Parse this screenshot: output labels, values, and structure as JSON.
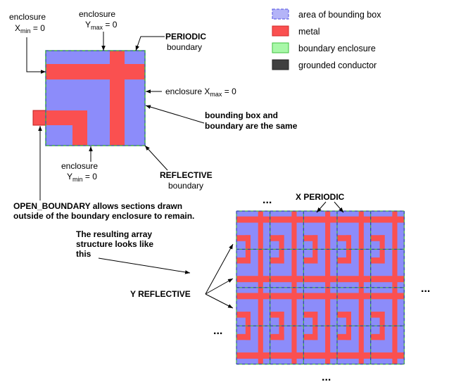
{
  "legend": [
    {
      "label": "area of bounding box",
      "swatch": "bounding-box"
    },
    {
      "label": "metal",
      "swatch": "metal"
    },
    {
      "label": "boundary enclosure",
      "swatch": "enclosure"
    },
    {
      "label": "grounded conductor",
      "swatch": "grounded"
    }
  ],
  "labels": {
    "xmin_line1": "enclosure",
    "xmin_var": "X",
    "xmin_sub": "min",
    "xmin_eq": " = 0",
    "ymax_line1": "enclosure",
    "ymax_var": "Y",
    "ymax_sub": "max",
    "ymax_eq": " = 0",
    "periodic_line1": "PERIODIC",
    "periodic_line2": "boundary",
    "xmax_prefix": "enclosure X",
    "xmax_sub": "max",
    "xmax_eq": " = 0",
    "same_line1": "bounding box and",
    "same_line2": "boundary are the same",
    "ymin_line1": "enclosure",
    "ymin_var": "Y",
    "ymin_sub": "min",
    "ymin_eq": " = 0",
    "reflective_line1": "REFLECTIVE",
    "reflective_line2": "boundary",
    "open_line1": "OPEN_BOUNDARY allows sections drawn",
    "open_line2": "outside of the boundary enclosure to remain.",
    "result_line1": "The resulting array",
    "result_line2": "structure looks like",
    "result_line3": "this",
    "x_periodic": "X PERIODIC",
    "y_reflective": "Y REFLECTIVE",
    "ellipsis_top": "...",
    "ellipsis_left": "...",
    "ellipsis_right": "...",
    "ellipsis_bottom": "..."
  },
  "colors": {
    "bounding_box": "#8c8cfa",
    "metal": "#fa5050",
    "enclosure": "#50d050",
    "grounded": "#404040",
    "legend_box": "#b4b4f8",
    "legend_enclosure": "#a8f8a8"
  }
}
